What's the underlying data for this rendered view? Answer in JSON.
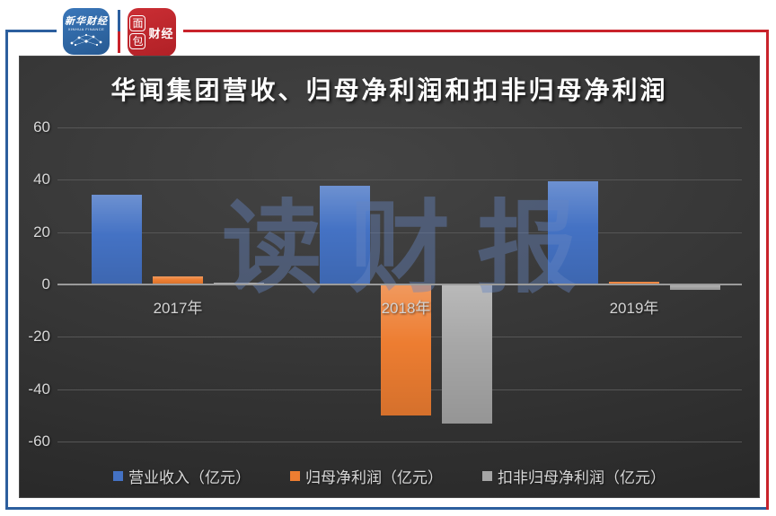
{
  "page": {
    "frame_blue": "#2c5f9e",
    "frame_red": "#c9232b"
  },
  "header": {
    "xinhua_logo": {
      "line1": "新华财经",
      "line2": "XINHUA FINANCE"
    },
    "bread_logo": {
      "char_top": "面",
      "char_bottom": "包",
      "chars_right": "财经"
    }
  },
  "chart_data": {
    "type": "bar",
    "title": "华闻集团营收、归母净利润和扣非归母净利润",
    "categories": [
      "2017年",
      "2018年",
      "2019年"
    ],
    "series": [
      {
        "name": "营业收入（亿元）",
        "color": "#4472c4",
        "values": [
          34.3,
          37.8,
          39.4
        ]
      },
      {
        "name": "归母净利润（亿元）",
        "color": "#ed7d31",
        "values": [
          3.1,
          -50.2,
          1.0
        ]
      },
      {
        "name": "扣非归母净利润（亿元）",
        "color": "#a6a6a6",
        "values": [
          0.6,
          -53.0,
          -2.0
        ]
      }
    ],
    "ylim": [
      -60,
      60
    ],
    "yticks": [
      60,
      40,
      20,
      0,
      -20,
      -40,
      -60
    ],
    "grid": true,
    "legend_position": "bottom",
    "watermark": "读财报",
    "panel_background": "#343434",
    "gridline_color": "#565656",
    "zero_axis_color": "#9b9b9b",
    "text_color": "#d8d8d8"
  }
}
